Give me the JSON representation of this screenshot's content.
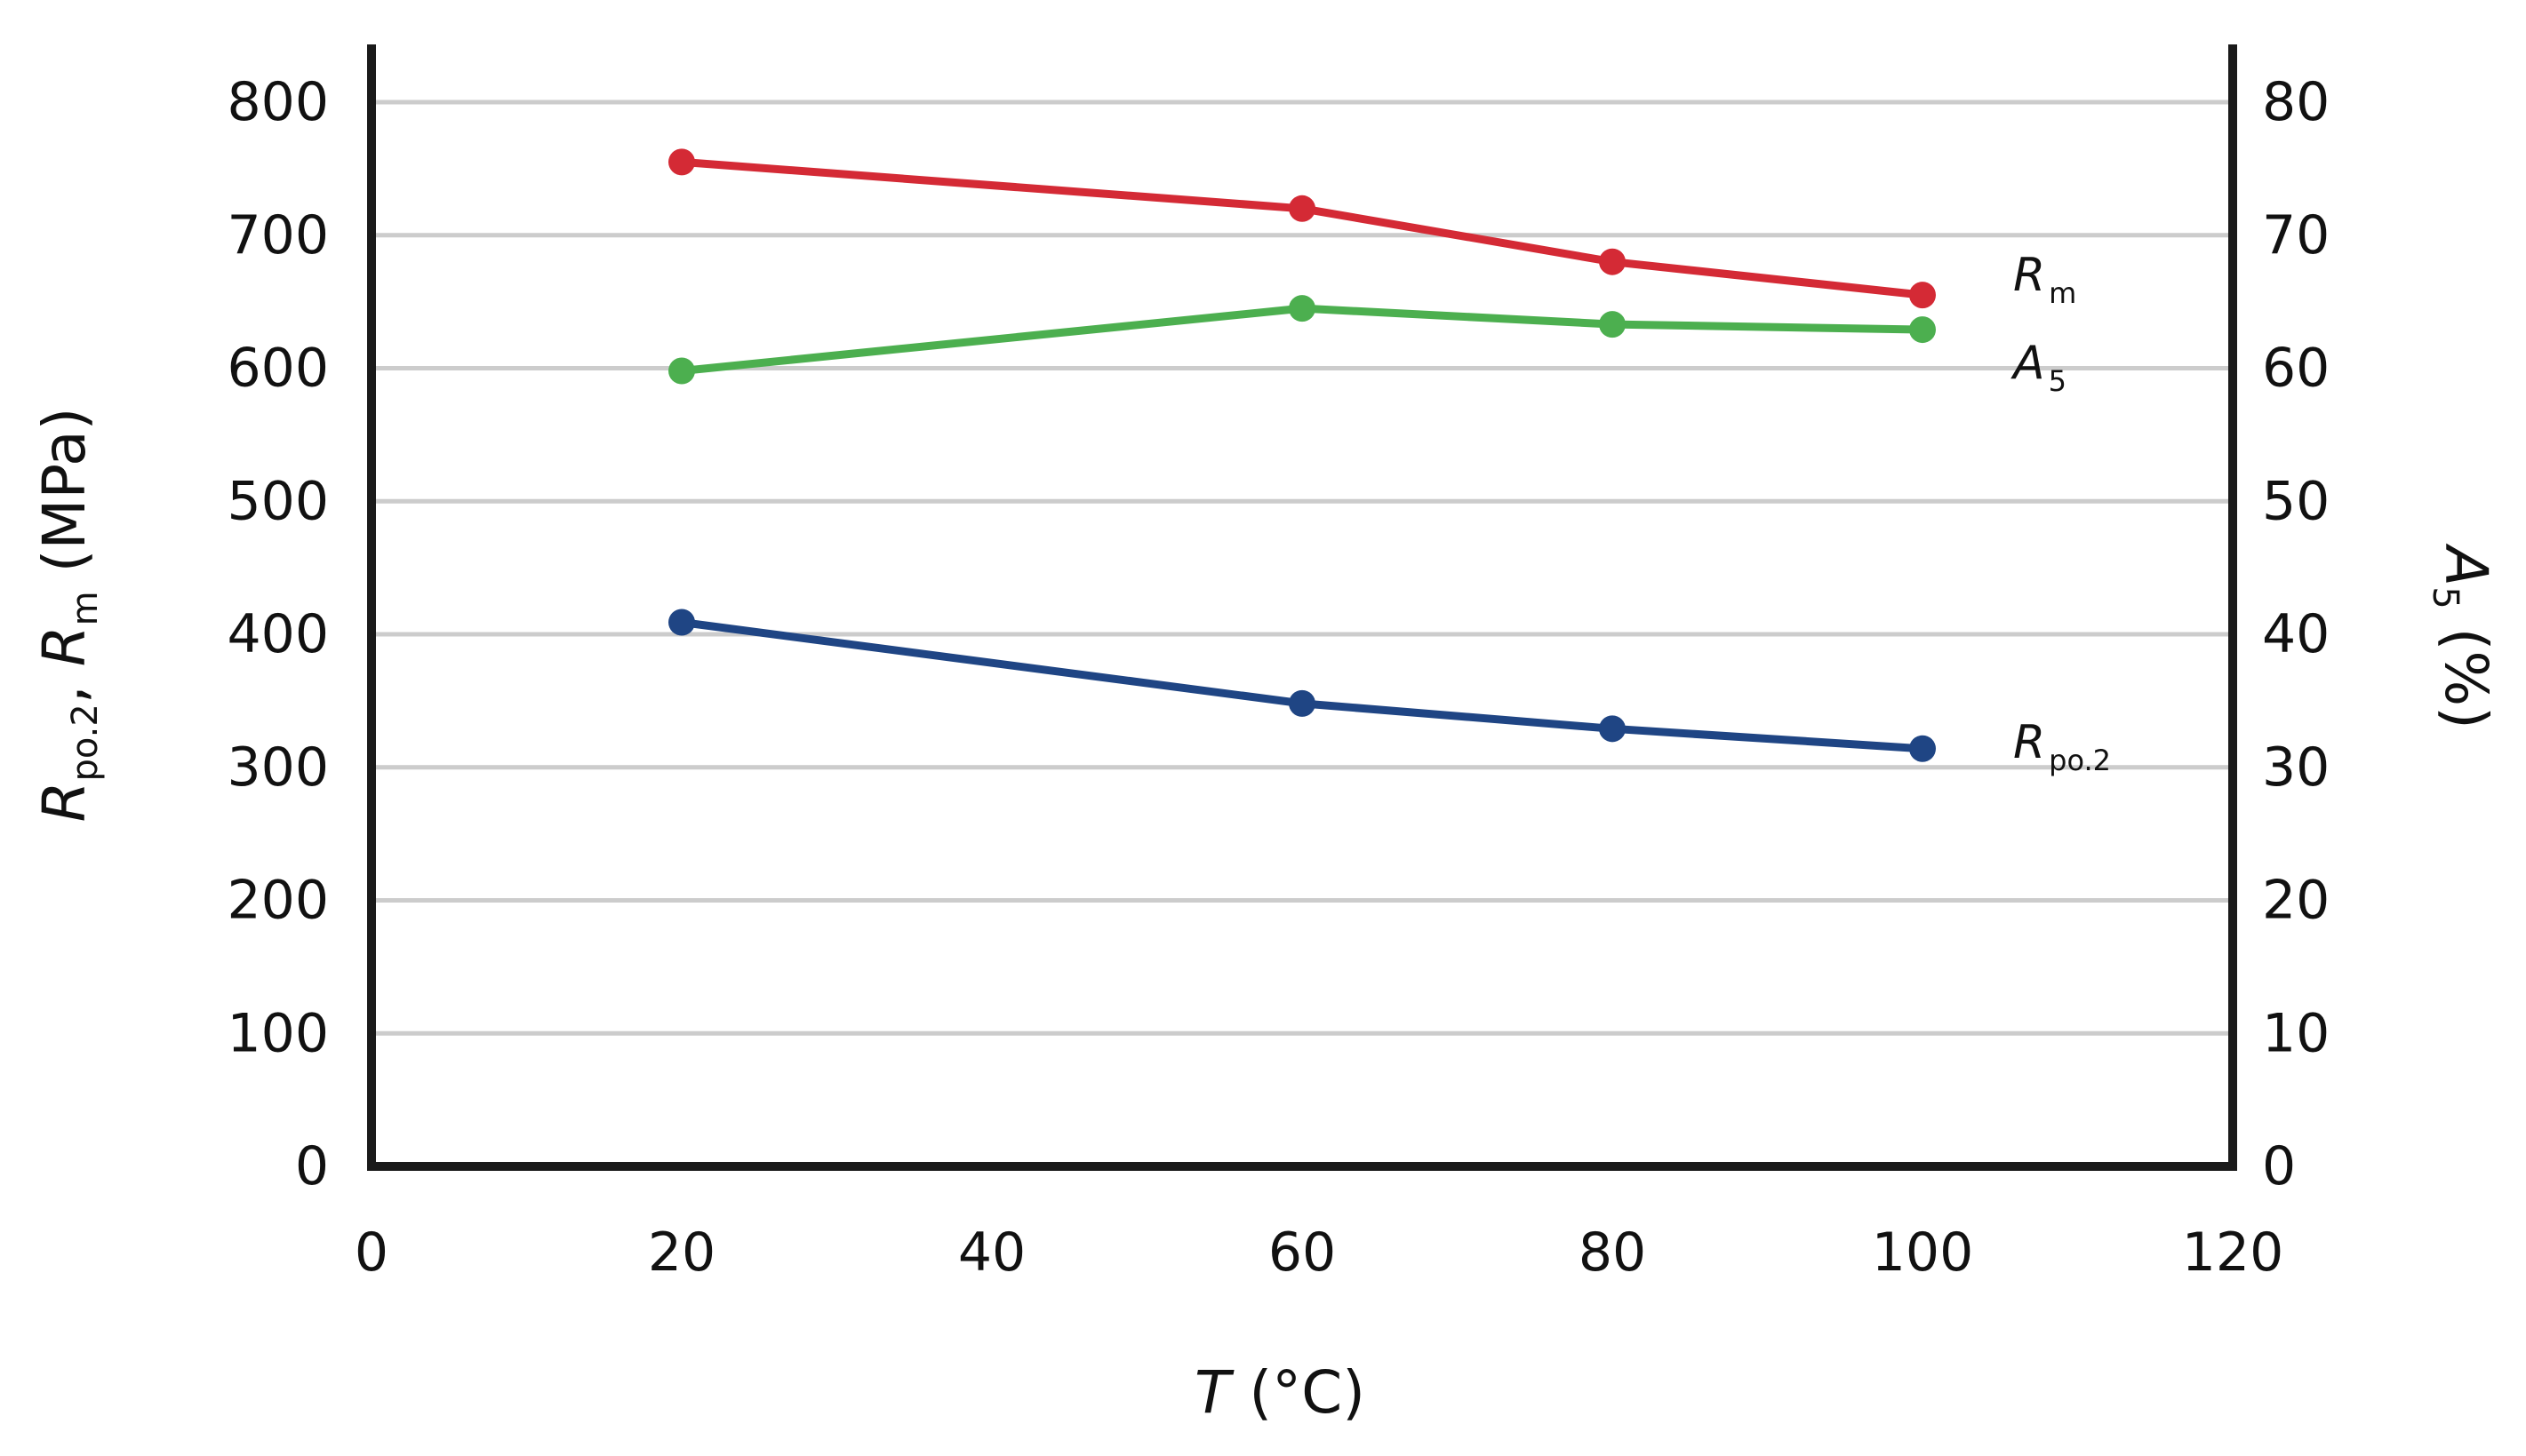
{
  "chart_data": {
    "type": "line",
    "x": [
      20,
      60,
      80,
      100
    ],
    "xlim": [
      0,
      120
    ],
    "ylim_left": [
      0,
      800
    ],
    "ylim_right": [
      0,
      80
    ],
    "x_ticks": [
      "0",
      "20",
      "40",
      "60",
      "80",
      "100",
      "120"
    ],
    "y_left_ticks": [
      "0",
      "100",
      "200",
      "300",
      "400",
      "500",
      "600",
      "700",
      "800"
    ],
    "y_right_ticks": [
      "0",
      "10",
      "20",
      "30",
      "40",
      "50",
      "60",
      "70",
      "80"
    ],
    "x_axis_title": {
      "main": "T",
      "rest": " (°C)"
    },
    "y_left_title": {
      "r1": "R",
      "r1_sub": "po.2",
      "sep": ", ",
      "r2": "R",
      "r2_sub": "m",
      "unit": " (MPa)"
    },
    "y_right_title": {
      "main": "A",
      "sub": "5",
      "unit": " (%)"
    },
    "grid": true,
    "series": [
      {
        "name": "Rm",
        "label_main": "R",
        "label_sub": "m",
        "axis": "left",
        "color": "#d42a35",
        "values": [
          755,
          720,
          680,
          655
        ]
      },
      {
        "name": "A5",
        "label_main": "A",
        "label_sub": "5",
        "axis": "right",
        "color": "#4caf4f",
        "values": [
          59.8,
          64.5,
          63.3,
          62.9
        ]
      },
      {
        "name": "Rpo.2",
        "label_main": "R",
        "label_sub": "po.2",
        "axis": "left",
        "color": "#1f4584",
        "values": [
          409,
          348,
          329,
          314
        ]
      }
    ]
  }
}
